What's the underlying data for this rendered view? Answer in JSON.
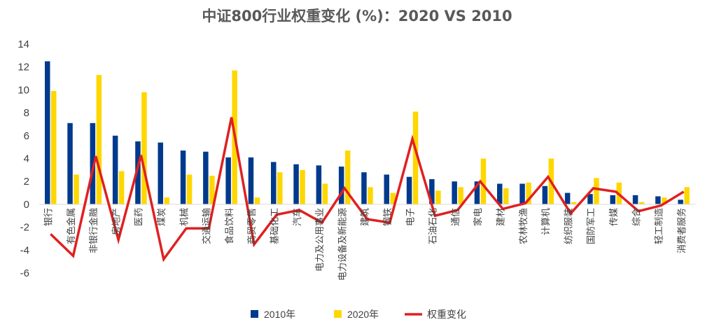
{
  "chart_data": {
    "type": "bar",
    "title": "中证800行业权重变化 (%)：2020 VS 2010",
    "categories": [
      "银行",
      "有色金属",
      "非银行金融",
      "房地产",
      "医药",
      "煤炭",
      "机械",
      "交通运输",
      "食品饮料",
      "商贸零售",
      "基础化工",
      "汽车",
      "电力及公用事业",
      "电力设备及新能源",
      "建筑",
      "钢铁",
      "电子",
      "石油石化",
      "通信",
      "家电",
      "建材",
      "农林牧渔",
      "计算机",
      "纺织服装",
      "国防军工",
      "传媒",
      "综合",
      "轻工制造",
      "消费者服务"
    ],
    "series": [
      {
        "name": "2010年",
        "type": "bar",
        "color": "#003A8C",
        "values": [
          12.5,
          7.1,
          7.1,
          6.0,
          5.5,
          5.4,
          4.7,
          4.6,
          4.1,
          4.1,
          3.7,
          3.5,
          3.4,
          3.3,
          2.8,
          2.6,
          2.4,
          2.2,
          2.0,
          2.0,
          1.8,
          1.8,
          1.6,
          1.0,
          0.9,
          0.8,
          0.8,
          0.7,
          0.4
        ]
      },
      {
        "name": "2020年",
        "type": "bar",
        "color": "#FFD700",
        "values": [
          9.9,
          2.6,
          11.3,
          2.9,
          9.8,
          0.6,
          2.6,
          2.5,
          11.7,
          0.6,
          2.8,
          3.0,
          1.8,
          4.7,
          1.5,
          1.0,
          8.1,
          1.2,
          1.5,
          4.0,
          1.4,
          1.9,
          4.0,
          0.2,
          2.3,
          1.9,
          0.2,
          0.6,
          1.5
        ]
      },
      {
        "name": "权重变化",
        "type": "line",
        "color": "#E02020",
        "values": [
          -2.6,
          -4.5,
          4.2,
          -3.1,
          4.3,
          -4.8,
          -2.1,
          -2.1,
          7.6,
          -3.5,
          -0.9,
          -0.5,
          -1.6,
          1.4,
          -1.3,
          -1.6,
          5.7,
          -1.0,
          -0.5,
          2.0,
          -0.4,
          0.1,
          2.4,
          -0.8,
          1.4,
          1.1,
          -0.6,
          -0.1,
          1.1
        ]
      }
    ],
    "ylim": [
      -6,
      14
    ],
    "yticks": [
      -6,
      -4,
      -2,
      0,
      2,
      4,
      6,
      8,
      10,
      12,
      14
    ],
    "grid": false,
    "legend": "bottom"
  }
}
